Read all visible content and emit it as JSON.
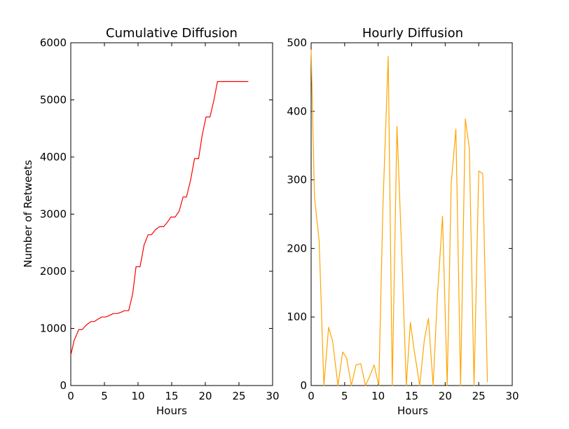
{
  "chart_data": [
    {
      "type": "line",
      "title": "Cumulative Diffusion",
      "xlabel": "Hours",
      "ylabel": "Number of Retweets",
      "xlim": [
        0,
        30
      ],
      "ylim": [
        0,
        6000
      ],
      "xticks": [
        0,
        5,
        10,
        15,
        20,
        25,
        30
      ],
      "yticks": [
        0,
        1000,
        2000,
        3000,
        4000,
        5000,
        6000
      ],
      "color": "#ff0000",
      "grid": false,
      "series": [
        {
          "x": [
            0,
            0.5,
            1.2,
            1.7,
            2.3,
            3.0,
            3.5,
            4.0,
            4.6,
            5.2,
            5.8,
            6.3,
            6.9,
            7.4,
            8.0,
            8.6,
            9.2,
            9.7,
            10.3,
            10.9,
            11.5,
            12.0,
            12.6,
            13.2,
            13.8,
            14.3,
            14.9,
            15.5,
            16.1,
            16.7,
            17.2,
            17.8,
            18.4,
            19.0,
            19.5,
            20.1,
            20.7,
            21.3,
            21.8,
            22.4,
            23.0,
            23.6,
            24.1,
            24.7,
            25.3,
            25.9,
            26.4
          ],
          "y": [
            530,
            790,
            980,
            980,
            1060,
            1120,
            1120,
            1160,
            1200,
            1200,
            1230,
            1260,
            1260,
            1280,
            1310,
            1310,
            1600,
            2080,
            2080,
            2460,
            2640,
            2640,
            2730,
            2780,
            2780,
            2850,
            2950,
            2950,
            3050,
            3300,
            3300,
            3590,
            3970,
            3970,
            4360,
            4700,
            4700,
            5010,
            5320,
            5320,
            5320,
            5320,
            5320,
            5320,
            5320,
            5320,
            5320
          ]
        }
      ]
    },
    {
      "type": "line",
      "title": "Hourly Diffusion",
      "xlabel": "Hours",
      "ylabel": "",
      "xlim": [
        0,
        30
      ],
      "ylim": [
        0,
        500
      ],
      "xticks": [
        0,
        5,
        10,
        15,
        20,
        25,
        30
      ],
      "yticks": [
        0,
        100,
        200,
        300,
        400,
        500
      ],
      "color": "#ffa500",
      "grid": false,
      "series": [
        {
          "x": [
            0,
            0.5,
            1.2,
            1.9,
            2.6,
            3.2,
            4.0,
            4.7,
            5.3,
            6.0,
            6.7,
            7.4,
            8.1,
            8.8,
            9.4,
            10.1,
            10.7,
            11.5,
            12.1,
            12.8,
            13.5,
            14.2,
            14.8,
            15.4,
            16.2,
            16.9,
            17.5,
            18.2,
            18.8,
            19.6,
            20.3,
            20.9,
            21.6,
            22.3,
            23.0,
            23.6,
            24.3,
            25.0,
            25.6,
            26.3
          ],
          "y": [
            490,
            275,
            210,
            0,
            85,
            65,
            0,
            49,
            40,
            0,
            30,
            32,
            0,
            15,
            30,
            0,
            260,
            480,
            0,
            378,
            200,
            0,
            92,
            50,
            0,
            68,
            98,
            0,
            125,
            247,
            0,
            295,
            374,
            0,
            389,
            346,
            0,
            313,
            309,
            5
          ]
        }
      ]
    }
  ]
}
